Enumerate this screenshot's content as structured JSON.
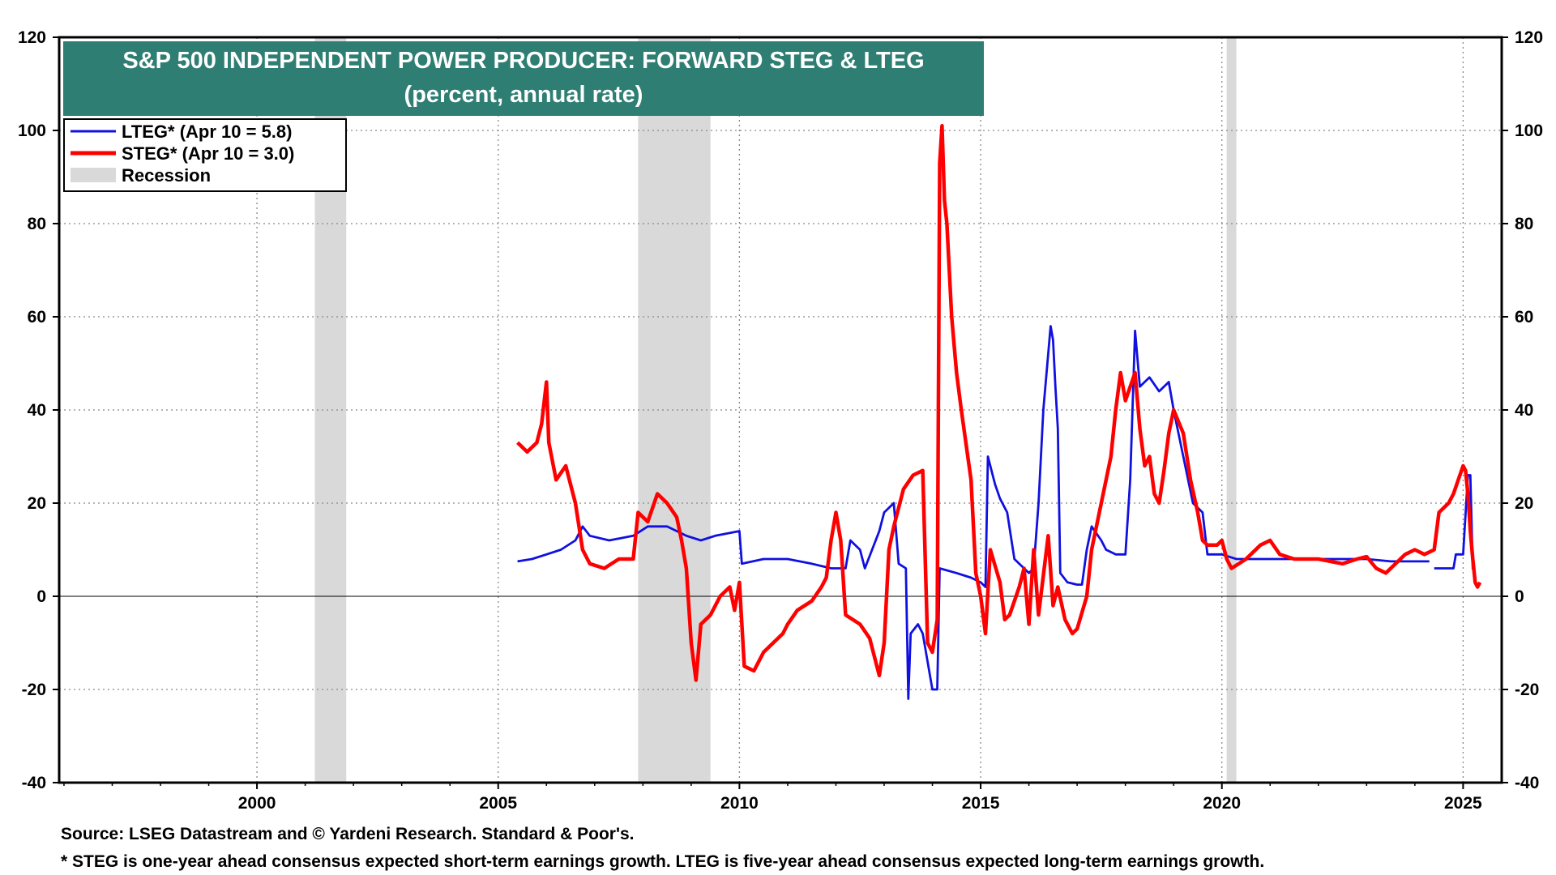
{
  "chart_data": {
    "type": "line",
    "title": "S&P 500 INDEPENDENT POWER PRODUCER: FORWARD STEG & LTEG",
    "subtitle": "(percent, annual rate)",
    "xlabel": "",
    "ylabel": "",
    "xlim": [
      1995.9,
      2025.8
    ],
    "ylim": [
      -40,
      120
    ],
    "x_ticks": [
      "2000",
      "2005",
      "2010",
      "2015",
      "2020",
      "2025"
    ],
    "y_ticks": [
      "-40",
      "-20",
      "0",
      "20",
      "40",
      "60",
      "80",
      "100",
      "120"
    ],
    "grid": true,
    "legend_position": "top-left",
    "legend": {
      "lteg": "LTEG* (Apr 10 = 5.8)",
      "steg": "STEG* (Apr 10 = 3.0)",
      "recession": "Recession"
    },
    "recessions": [
      [
        2001.2,
        2001.85
      ],
      [
        2007.9,
        2009.4
      ],
      [
        2020.1,
        2020.3
      ]
    ],
    "series": [
      {
        "name": "LTEG",
        "color": "#1010e0",
        "points": [
          [
            2005.4,
            7.5
          ],
          [
            2005.7,
            8
          ],
          [
            2006.0,
            9
          ],
          [
            2006.3,
            10
          ],
          [
            2006.6,
            12
          ],
          [
            2006.75,
            15
          ],
          [
            2006.9,
            13
          ],
          [
            2007.3,
            12
          ],
          [
            2007.8,
            13
          ],
          [
            2008.1,
            15
          ],
          [
            2008.5,
            15
          ],
          [
            2008.9,
            13
          ],
          [
            2009.2,
            12
          ],
          [
            2009.5,
            13
          ],
          [
            2010.0,
            14
          ],
          [
            2010.05,
            7
          ],
          [
            2010.5,
            8
          ],
          [
            2011.0,
            8
          ],
          [
            2011.5,
            7
          ],
          [
            2011.9,
            6
          ],
          [
            2012.2,
            6
          ],
          [
            2012.3,
            12
          ],
          [
            2012.5,
            10
          ],
          [
            2012.6,
            6
          ],
          [
            2012.9,
            14
          ],
          [
            2013.0,
            18
          ],
          [
            2013.2,
            20
          ],
          [
            2013.3,
            7
          ],
          [
            2013.45,
            6
          ],
          [
            2013.5,
            -22
          ],
          [
            2013.55,
            -8
          ],
          [
            2013.7,
            -6
          ],
          [
            2013.8,
            -8
          ],
          [
            2014.0,
            -20
          ],
          [
            2014.1,
            -20
          ],
          [
            2014.15,
            6
          ],
          [
            2014.5,
            5
          ],
          [
            2014.8,
            4
          ],
          [
            2015.0,
            3
          ],
          [
            2015.1,
            2
          ],
          [
            2015.15,
            30
          ],
          [
            2015.3,
            24
          ],
          [
            2015.4,
            21
          ],
          [
            2015.55,
            18
          ],
          [
            2015.7,
            8
          ],
          [
            2016.0,
            5
          ],
          [
            2016.1,
            6
          ],
          [
            2016.2,
            20
          ],
          [
            2016.3,
            40
          ],
          [
            2016.45,
            58
          ],
          [
            2016.5,
            55
          ],
          [
            2016.55,
            45
          ],
          [
            2016.6,
            36
          ],
          [
            2016.65,
            5
          ],
          [
            2016.8,
            3
          ],
          [
            2017.0,
            2.5
          ],
          [
            2017.1,
            2.5
          ],
          [
            2017.2,
            10
          ],
          [
            2017.3,
            15
          ],
          [
            2017.5,
            12
          ],
          [
            2017.6,
            10
          ],
          [
            2017.8,
            9
          ],
          [
            2018.0,
            9
          ],
          [
            2018.1,
            25
          ],
          [
            2018.2,
            57
          ],
          [
            2018.3,
            45
          ],
          [
            2018.5,
            47
          ],
          [
            2018.7,
            44
          ],
          [
            2018.9,
            46
          ],
          [
            2019.0,
            40
          ],
          [
            2019.2,
            30
          ],
          [
            2019.4,
            20
          ],
          [
            2019.6,
            18
          ],
          [
            2019.7,
            9
          ],
          [
            2020.0,
            9
          ],
          [
            2020.3,
            8
          ],
          [
            2021.0,
            8
          ],
          [
            2021.5,
            8
          ],
          [
            2022.0,
            8
          ],
          [
            2022.5,
            8
          ],
          [
            2023.0,
            8
          ],
          [
            2023.5,
            7.5
          ],
          [
            2024.0,
            7.5
          ],
          [
            2024.3,
            7.5
          ],
          [
            2024.4,
            null
          ],
          [
            2024.4,
            6
          ],
          [
            2024.8,
            6
          ],
          [
            2024.85,
            9
          ],
          [
            2025.0,
            9
          ],
          [
            2025.1,
            26
          ],
          [
            2025.15,
            26
          ],
          [
            2025.2,
            5.8
          ]
        ]
      },
      {
        "name": "STEG",
        "color": "#ff0000",
        "points": [
          [
            2005.4,
            33
          ],
          [
            2005.6,
            31
          ],
          [
            2005.8,
            33
          ],
          [
            2005.9,
            37
          ],
          [
            2006.0,
            46
          ],
          [
            2006.05,
            33
          ],
          [
            2006.2,
            25
          ],
          [
            2006.4,
            28
          ],
          [
            2006.6,
            20
          ],
          [
            2006.75,
            10
          ],
          [
            2006.9,
            7
          ],
          [
            2007.2,
            6
          ],
          [
            2007.5,
            8
          ],
          [
            2007.8,
            8
          ],
          [
            2007.9,
            18
          ],
          [
            2008.1,
            16
          ],
          [
            2008.3,
            22
          ],
          [
            2008.5,
            20
          ],
          [
            2008.7,
            17
          ],
          [
            2008.8,
            12
          ],
          [
            2008.9,
            6
          ],
          [
            2009.0,
            -10
          ],
          [
            2009.1,
            -18
          ],
          [
            2009.2,
            -6
          ],
          [
            2009.4,
            -4
          ],
          [
            2009.6,
            0
          ],
          [
            2009.8,
            2
          ],
          [
            2009.9,
            -3
          ],
          [
            2010.0,
            3
          ],
          [
            2010.1,
            -15
          ],
          [
            2010.3,
            -16
          ],
          [
            2010.5,
            -12
          ],
          [
            2010.7,
            -10
          ],
          [
            2010.9,
            -8
          ],
          [
            2011.0,
            -6
          ],
          [
            2011.2,
            -3
          ],
          [
            2011.5,
            -1
          ],
          [
            2011.7,
            2
          ],
          [
            2011.8,
            4
          ],
          [
            2011.9,
            12
          ],
          [
            2012.0,
            18
          ],
          [
            2012.1,
            12
          ],
          [
            2012.2,
            -4
          ],
          [
            2012.5,
            -6
          ],
          [
            2012.7,
            -9
          ],
          [
            2012.9,
            -17
          ],
          [
            2013.0,
            -10
          ],
          [
            2013.1,
            10
          ],
          [
            2013.2,
            15
          ],
          [
            2013.4,
            23
          ],
          [
            2013.6,
            26
          ],
          [
            2013.8,
            27
          ],
          [
            2013.9,
            -10
          ],
          [
            2014.0,
            -12
          ],
          [
            2014.1,
            -5
          ],
          [
            2014.15,
            93
          ],
          [
            2014.2,
            101
          ],
          [
            2014.25,
            85
          ],
          [
            2014.3,
            80
          ],
          [
            2014.4,
            60
          ],
          [
            2014.5,
            48
          ],
          [
            2014.6,
            40
          ],
          [
            2014.8,
            25
          ],
          [
            2014.9,
            5
          ],
          [
            2015.0,
            0
          ],
          [
            2015.1,
            -8
          ],
          [
            2015.2,
            10
          ],
          [
            2015.4,
            3
          ],
          [
            2015.5,
            -5
          ],
          [
            2015.6,
            -4
          ],
          [
            2015.8,
            2
          ],
          [
            2015.9,
            6
          ],
          [
            2016.0,
            -6
          ],
          [
            2016.1,
            10
          ],
          [
            2016.2,
            -4
          ],
          [
            2016.4,
            13
          ],
          [
            2016.5,
            -2
          ],
          [
            2016.6,
            2
          ],
          [
            2016.75,
            -5
          ],
          [
            2016.9,
            -8
          ],
          [
            2017.0,
            -7
          ],
          [
            2017.2,
            0
          ],
          [
            2017.3,
            10
          ],
          [
            2017.5,
            20
          ],
          [
            2017.7,
            30
          ],
          [
            2017.8,
            40
          ],
          [
            2017.9,
            48
          ],
          [
            2018.0,
            42
          ],
          [
            2018.1,
            45
          ],
          [
            2018.2,
            48
          ],
          [
            2018.3,
            36
          ],
          [
            2018.4,
            28
          ],
          [
            2018.5,
            30
          ],
          [
            2018.6,
            22
          ],
          [
            2018.7,
            20
          ],
          [
            2018.8,
            27
          ],
          [
            2018.9,
            35
          ],
          [
            2019.0,
            40
          ],
          [
            2019.2,
            35
          ],
          [
            2019.35,
            25
          ],
          [
            2019.5,
            18
          ],
          [
            2019.6,
            12
          ],
          [
            2019.7,
            11
          ],
          [
            2019.9,
            11
          ],
          [
            2020.0,
            12
          ],
          [
            2020.1,
            8
          ],
          [
            2020.2,
            6
          ],
          [
            2020.5,
            8
          ],
          [
            2020.8,
            11
          ],
          [
            2021.0,
            12
          ],
          [
            2021.2,
            9
          ],
          [
            2021.5,
            8
          ],
          [
            2022.0,
            8
          ],
          [
            2022.5,
            7
          ],
          [
            2022.8,
            8
          ],
          [
            2023.0,
            8.5
          ],
          [
            2023.2,
            6
          ],
          [
            2023.4,
            5
          ],
          [
            2023.6,
            7
          ],
          [
            2023.8,
            9
          ],
          [
            2024.0,
            10
          ],
          [
            2024.2,
            9
          ],
          [
            2024.4,
            10
          ],
          [
            2024.5,
            18
          ],
          [
            2024.7,
            20
          ],
          [
            2024.8,
            22
          ],
          [
            2024.9,
            25
          ],
          [
            2025.0,
            28
          ],
          [
            2025.05,
            27
          ],
          [
            2025.1,
            22
          ],
          [
            2025.15,
            14
          ],
          [
            2025.2,
            8
          ],
          [
            2025.25,
            3
          ],
          [
            2025.3,
            2
          ],
          [
            2025.35,
            3
          ]
        ]
      }
    ]
  },
  "footnotes": {
    "source": "Source: LSEG Datastream and © Yardeni Research. Standard & Poor's.",
    "note": "* STEG is one-year ahead consensus expected short-term earnings growth. LTEG is five-year ahead consensus expected long-term earnings growth."
  }
}
